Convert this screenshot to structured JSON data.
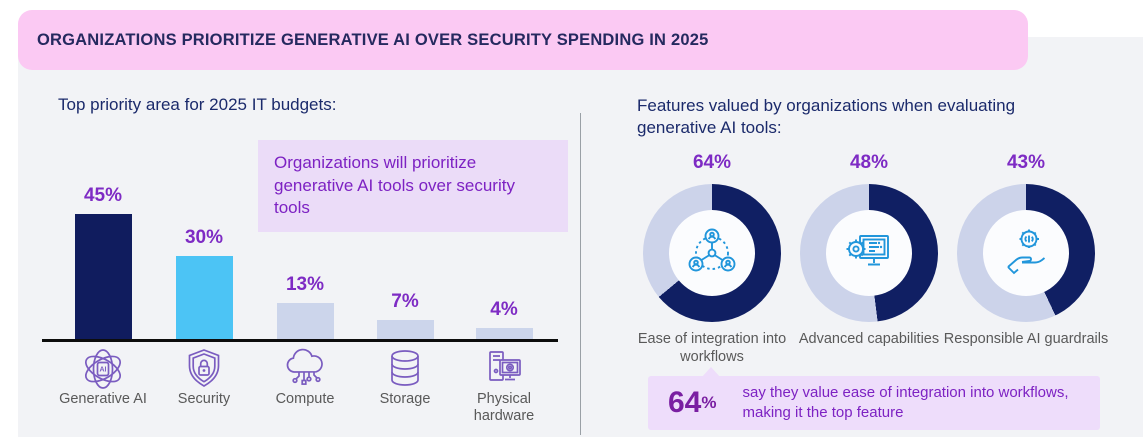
{
  "banner": {
    "title": "ORGANIZATIONS PRIORITIZE GENERATIVE AI OVER SECURITY SPENDING IN 2025"
  },
  "left": {
    "title": "Top priority area for 2025 IT budgets:",
    "callout": "Organizations will prioritize generative AI tools over security tools"
  },
  "right": {
    "title": "Features valued by organizations when evaluating generative AI tools:",
    "highlight": {
      "value": "64",
      "sign": "%",
      "text": "say they value ease of integration into workflows, making it the top feature"
    }
  },
  "chart_data": [
    {
      "type": "bar",
      "title": "Top priority area for 2025 IT budgets:",
      "categories": [
        "Generative AI",
        "Security",
        "Compute",
        "Storage",
        "Physical hardware"
      ],
      "values": [
        45,
        30,
        13,
        7,
        4
      ],
      "unit": "%",
      "ylim": [
        0,
        50
      ],
      "grid": false,
      "bar_colors": [
        "#101c5e",
        "#4cc4f5",
        "#ccd5eb",
        "#ccd5eb",
        "#ccd5eb"
      ],
      "icons": [
        "atom-ai-icon",
        "shield-lock-icon",
        "cloud-compute-icon",
        "database-icon",
        "desktop-pc-icon"
      ]
    },
    {
      "type": "donut",
      "title": "Features valued by organizations when evaluating generative AI tools:",
      "categories": [
        "Ease of integration into workflows",
        "Advanced capabilities",
        "Responsible AI guardrails"
      ],
      "values": [
        64,
        48,
        43
      ],
      "unit": "%",
      "fill_color": "#101f63",
      "track_color": "#ccd3ea",
      "icons": [
        "people-network-icon",
        "gear-monitor-icon",
        "hand-ai-icon"
      ]
    }
  ],
  "colors": {
    "banner_bg": "#fbc9f3",
    "banner_text": "#25295f",
    "panel_bg": "#f2f3f6",
    "heading_navy": "#1b2a6b",
    "pct_purple": "#7e2bc4",
    "callout_bg": "#ebdcf8",
    "callout_text": "#7d22c3",
    "highlight_bg": "#eeddfb",
    "bar_navy": "#101c5e",
    "bar_blue": "#4cc4f5",
    "bar_lavender": "#ccd5eb",
    "donut_navy": "#101f63",
    "donut_track": "#ccd3ea",
    "icon_purple": "#7a5cc0",
    "icon_blue": "#2196db",
    "label_gray": "#595959"
  }
}
